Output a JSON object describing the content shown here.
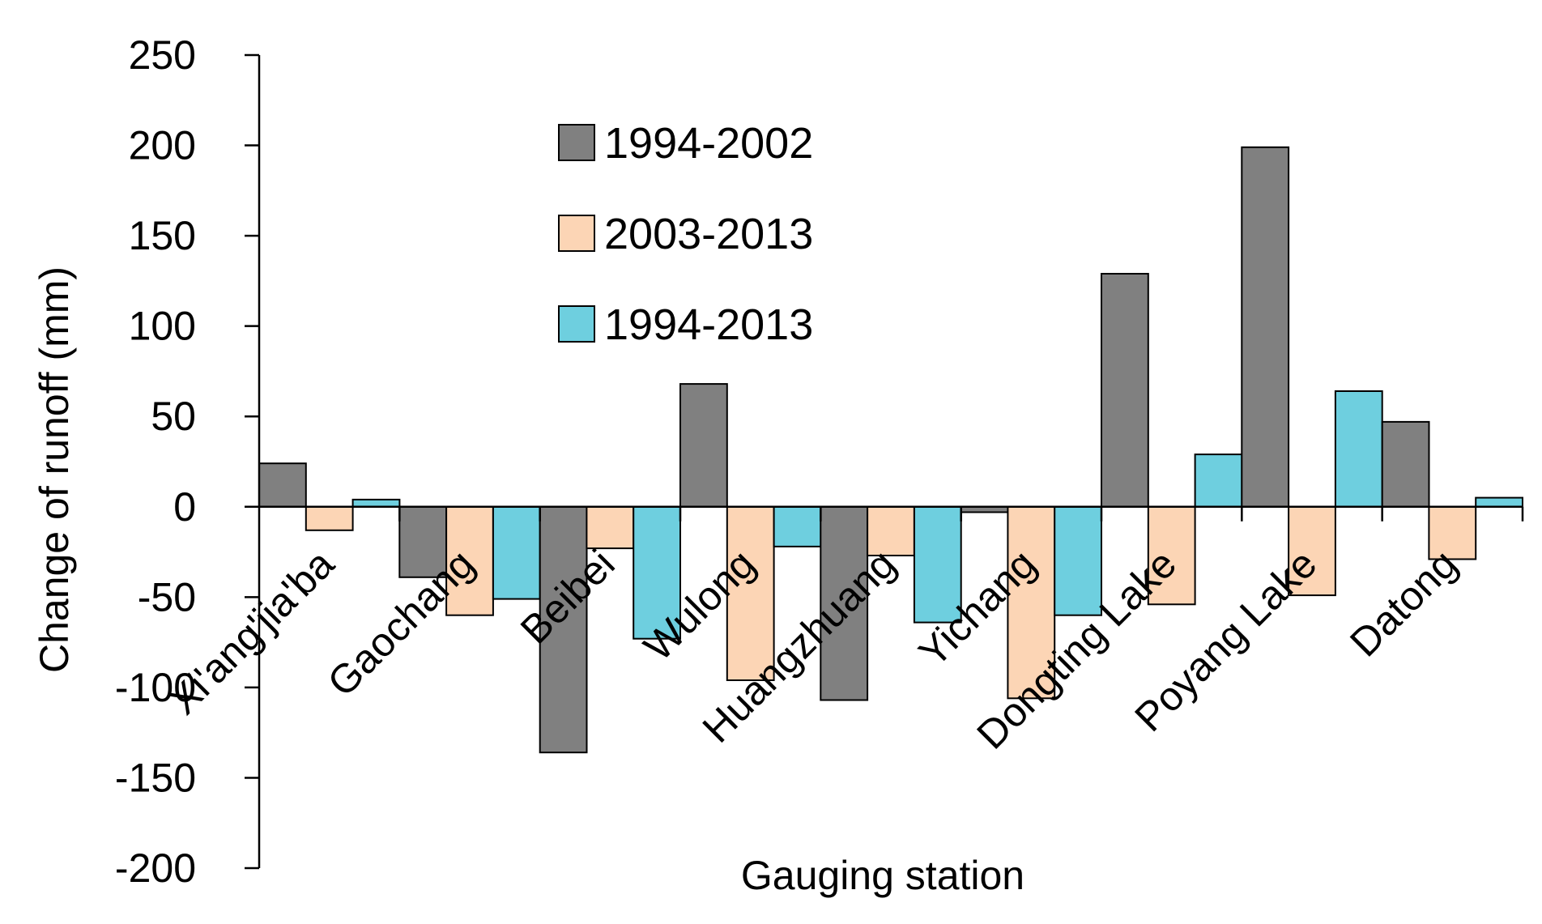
{
  "chart_data": {
    "type": "bar",
    "title": "",
    "xlabel": "Gauging station",
    "ylabel": "Change of runoff  (mm)",
    "ylim": [
      -200,
      250
    ],
    "yticks": [
      250,
      200,
      150,
      100,
      50,
      0,
      -50,
      -100,
      -150,
      -200
    ],
    "grid": false,
    "legend_position": "top-center",
    "categories": [
      "Xi'ang'jia'ba",
      "Gaochang",
      "Beibei",
      "Wulong",
      "Huangzhuang",
      "Yichang",
      "Dongting Lake",
      "Poyang Lake",
      "Datong"
    ],
    "series": [
      {
        "name": "1994-2002",
        "color": "#808080",
        "values": [
          24,
          -39,
          -136,
          68,
          -107,
          -3,
          129,
          199,
          47
        ]
      },
      {
        "name": "2003-2013",
        "color": "#FCD5B5",
        "values": [
          -13,
          -60,
          -23,
          -96,
          -27,
          -106,
          -54,
          -49,
          -29
        ]
      },
      {
        "name": "1994-2013",
        "color": "#6ECFDF",
        "values": [
          4,
          -51,
          -73,
          -22,
          -64,
          -60,
          29,
          64,
          5
        ]
      }
    ]
  }
}
